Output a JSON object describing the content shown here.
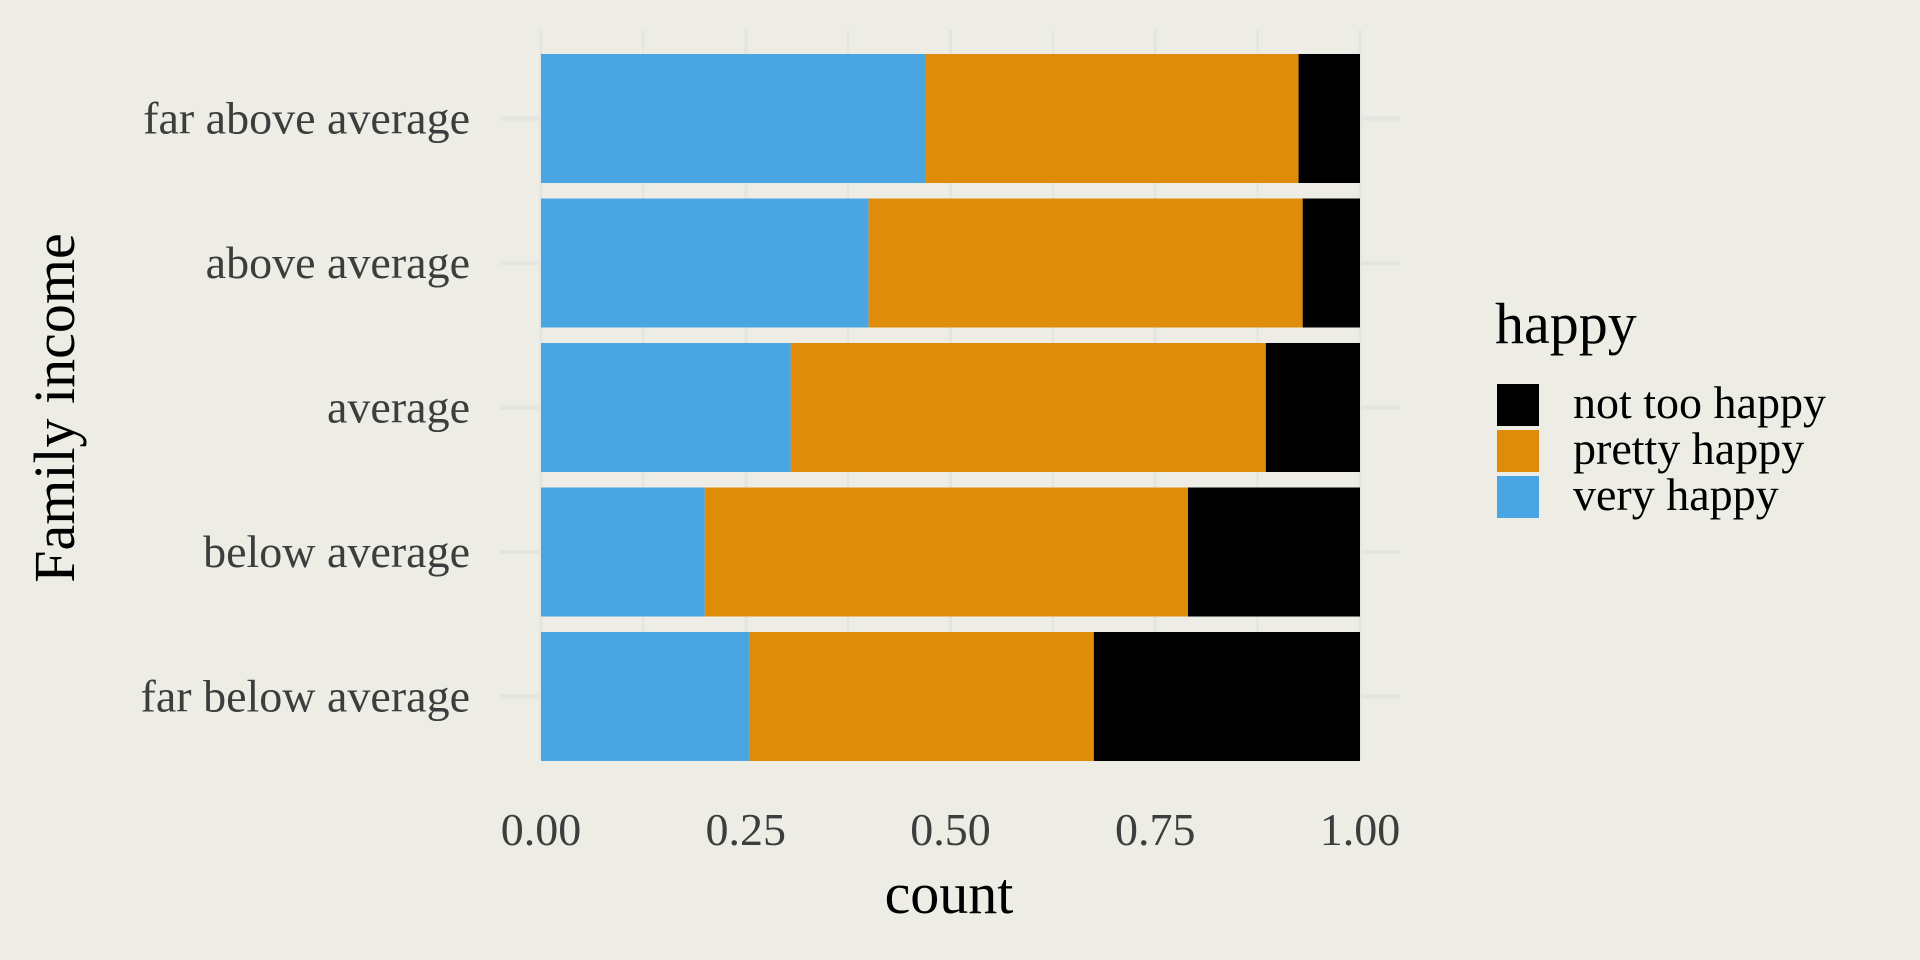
{
  "chart_data": {
    "type": "bar",
    "orientation": "horizontal",
    "stacked": "fill",
    "categories": [
      "far above average",
      "above average",
      "average",
      "below average",
      "far below average"
    ],
    "series": [
      {
        "name": "very happy",
        "color": "#4aa5e3",
        "values": [
          0.47,
          0.4,
          0.305,
          0.2,
          0.255
        ]
      },
      {
        "name": "pretty happy",
        "color": "#df8c0a",
        "values": [
          0.455,
          0.53,
          0.58,
          0.59,
          0.42
        ]
      },
      {
        "name": "not too happy",
        "color": "#000000",
        "values": [
          0.075,
          0.07,
          0.115,
          0.21,
          0.325
        ]
      }
    ],
    "xlabel": "count",
    "ylabel": "Family income",
    "xlim": [
      0,
      1
    ],
    "xticks": [
      "0.00",
      "0.25",
      "0.50",
      "0.75",
      "1.00"
    ],
    "xtick_values": [
      0,
      0.25,
      0.5,
      0.75,
      1.0
    ],
    "grid": true,
    "legend": {
      "title": "happy",
      "placement": "right",
      "items": [
        "not too happy",
        "pretty happy",
        "very happy"
      ]
    }
  },
  "colors": {
    "background": "#edede6",
    "grid": "#e4e4e0"
  }
}
